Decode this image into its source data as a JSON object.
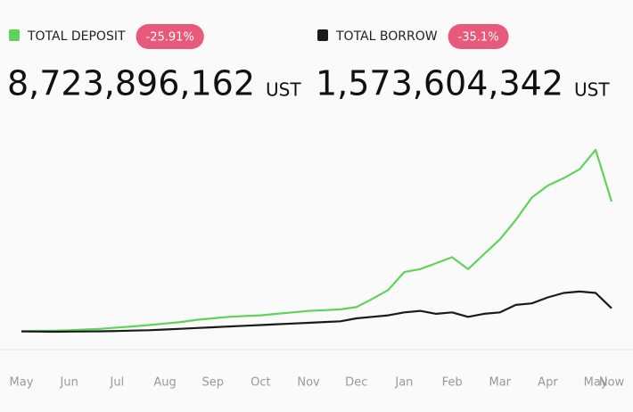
{
  "chart_data": {
    "type": "line",
    "categories": [
      "May",
      null,
      null,
      "Jun",
      null,
      null,
      "Jul",
      null,
      null,
      "Aug",
      null,
      null,
      "Sep",
      null,
      null,
      "Oct",
      null,
      null,
      "Nov",
      null,
      null,
      "Dec",
      null,
      null,
      "Jan",
      null,
      null,
      "Feb",
      null,
      null,
      "Mar",
      null,
      null,
      "Apr",
      null,
      null,
      "May",
      "Now"
    ],
    "series": [
      {
        "name": "TOTAL DEPOSIT",
        "color": "#5fd35a",
        "change": "-25.91%",
        "total": "8,723,896,162",
        "unit": "UST",
        "values": [
          50000000,
          60000000,
          70000000,
          100000000,
          150000000,
          200000000,
          280000000,
          360000000,
          450000000,
          550000000,
          650000000,
          800000000,
          900000000,
          1000000000,
          1050000000,
          1100000000,
          1200000000,
          1300000000,
          1400000000,
          1450000000,
          1500000000,
          1650000000,
          2200000000,
          2800000000,
          4000000000,
          4200000000,
          4600000000,
          5000000000,
          4200000000,
          5200000000,
          6200000000,
          7500000000,
          9000000000,
          9800000000,
          10300000000,
          10900000000,
          12200000000,
          8723896162
        ]
      },
      {
        "name": "TOTAL BORROW",
        "color": "#1a1a1a",
        "change": "-35.1%",
        "total": "1,573,604,342",
        "unit": "UST",
        "values": [
          20000000,
          10000000,
          0,
          10000000,
          20000000,
          30000000,
          50000000,
          80000000,
          100000000,
          150000000,
          200000000,
          250000000,
          300000000,
          350000000,
          400000000,
          450000000,
          500000000,
          550000000,
          600000000,
          650000000,
          700000000,
          900000000,
          1000000000,
          1100000000,
          1300000000,
          1400000000,
          1200000000,
          1300000000,
          1000000000,
          1200000000,
          1300000000,
          1800000000,
          1900000000,
          2300000000,
          2600000000,
          2700000000,
          2600000000,
          1573604342
        ]
      }
    ]
  }
}
